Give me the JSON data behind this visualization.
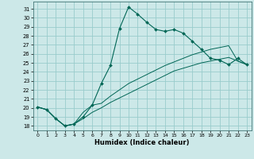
{
  "xlabel": "Humidex (Indice chaleur)",
  "background_color": "#cce8e8",
  "grid_color": "#99cccc",
  "line_color": "#006655",
  "ylim": [
    17.5,
    31.8
  ],
  "xlim": [
    -0.5,
    23.5
  ],
  "yticks": [
    18,
    19,
    20,
    21,
    22,
    23,
    24,
    25,
    26,
    27,
    28,
    29,
    30,
    31
  ],
  "xticks": [
    0,
    1,
    2,
    3,
    4,
    5,
    6,
    7,
    8,
    9,
    10,
    11,
    12,
    13,
    14,
    15,
    16,
    17,
    18,
    19,
    20,
    21,
    22,
    23
  ],
  "line1_x": [
    0,
    1,
    2,
    3,
    4,
    5,
    6,
    7,
    8,
    9,
    10,
    11,
    12,
    13,
    14,
    15,
    16,
    17,
    18,
    19,
    20,
    21,
    22,
    23
  ],
  "line1_y": [
    20.1,
    19.8,
    18.8,
    18.0,
    18.2,
    19.0,
    20.3,
    22.7,
    24.7,
    28.8,
    31.2,
    30.4,
    29.5,
    28.7,
    28.5,
    28.7,
    28.3,
    27.4,
    26.5,
    25.5,
    25.3,
    24.8,
    25.5,
    24.8
  ],
  "line2_x": [
    0,
    1,
    2,
    3,
    4,
    5,
    6,
    7,
    8,
    9,
    10,
    11,
    12,
    13,
    14,
    15,
    16,
    17,
    18,
    19,
    20,
    21,
    22,
    23
  ],
  "line2_y": [
    20.1,
    19.8,
    18.8,
    18.0,
    18.2,
    19.5,
    20.3,
    20.5,
    21.3,
    22.0,
    22.7,
    23.2,
    23.7,
    24.2,
    24.7,
    25.1,
    25.5,
    25.9,
    26.2,
    26.5,
    26.7,
    26.9,
    25.2,
    24.8
  ],
  "line3_x": [
    0,
    1,
    2,
    3,
    4,
    5,
    6,
    7,
    8,
    9,
    10,
    11,
    12,
    13,
    14,
    15,
    16,
    17,
    18,
    19,
    20,
    21,
    22,
    23
  ],
  "line3_y": [
    20.1,
    19.8,
    18.8,
    18.0,
    18.2,
    18.8,
    19.5,
    20.0,
    20.6,
    21.1,
    21.6,
    22.1,
    22.6,
    23.1,
    23.6,
    24.1,
    24.4,
    24.7,
    25.0,
    25.2,
    25.4,
    25.6,
    25.2,
    24.8
  ]
}
